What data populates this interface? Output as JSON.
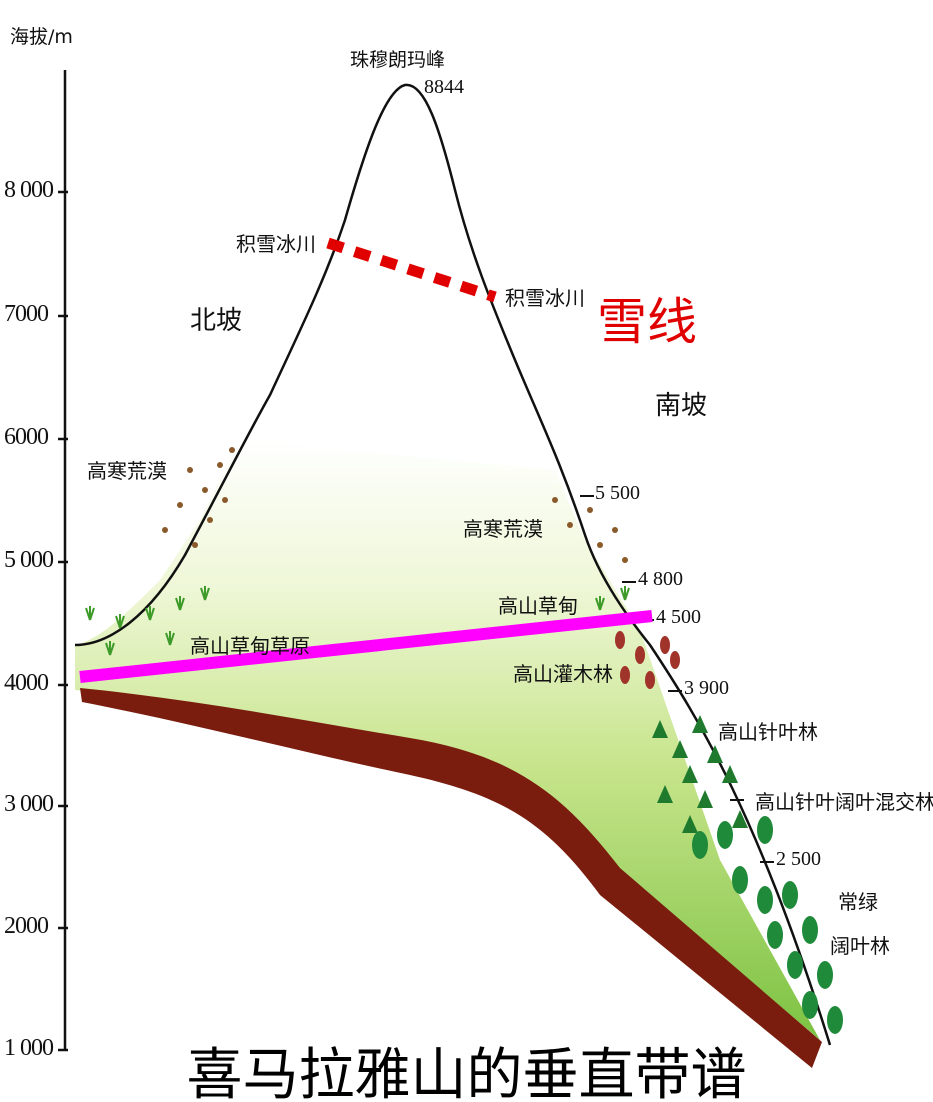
{
  "diagram": {
    "title": "喜马拉雅山的垂直带谱",
    "y_axis": {
      "label": "海拔/m",
      "ticks": [
        "8 000",
        "7000",
        "6000",
        "5 000",
        "4000",
        "3 000",
        "2000",
        "1 000"
      ]
    },
    "peak": {
      "name": "珠穆朗玛峰",
      "elevation": "8844"
    },
    "snow_line_label": "雪线",
    "north_slope": {
      "label": "北坡",
      "zones": [
        "积雪冰川",
        "高寒荒漠",
        "高山草甸草原"
      ]
    },
    "south_slope": {
      "label": "南坡",
      "zones": [
        "积雪冰川",
        "高寒荒漠",
        "高山草甸",
        "高山灌木林",
        "高山针叶林",
        "高山针叶阔叶混交林",
        "常绿",
        "阔叶林"
      ],
      "boundary_altitudes": [
        "5 500",
        "4 800",
        "4 500",
        "3 900",
        "2 500"
      ]
    },
    "colors": {
      "snow_line": "#e00000",
      "treeline_marker": "#ff00ff",
      "vegetation_green": "#7cc242",
      "soil": "#7a1d0e"
    }
  }
}
